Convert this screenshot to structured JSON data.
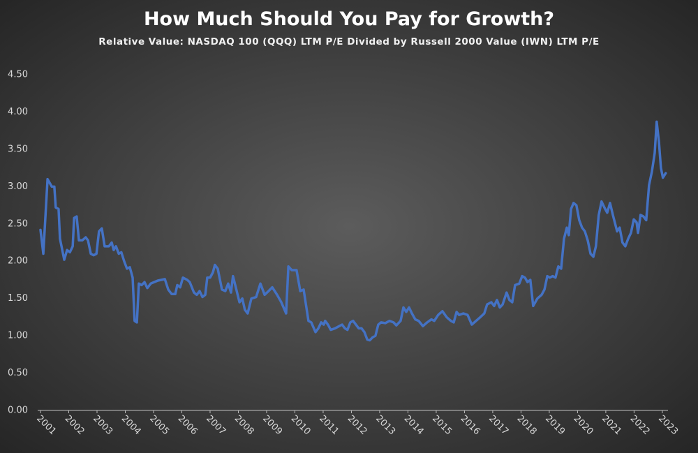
{
  "chart_data": {
    "type": "line",
    "title": "How Much Should You Pay for Growth?",
    "subtitle": "Relative Value: NASDAQ 100 (QQQ) LTM P/E Divided by Russell 2000 Value (IWN) LTM P/E",
    "color": "#4472c4",
    "xlim": [
      2001,
      2023.2
    ],
    "xticks": [
      2001,
      2002,
      2003,
      2004,
      2005,
      2006,
      2007,
      2008,
      2009,
      2010,
      2011,
      2012,
      2013,
      2014,
      2015,
      2016,
      2017,
      2018,
      2019,
      2020,
      2021,
      2022,
      2023
    ],
    "ylim": [
      0,
      4.5
    ],
    "yticks": [
      {
        "value": 0,
        "label": "0.00"
      },
      {
        "value": 0.5,
        "label": "0.50"
      },
      {
        "value": 1,
        "label": "1.00"
      },
      {
        "value": 1.5,
        "label": "1.50"
      },
      {
        "value": 2,
        "label": "2.00"
      },
      {
        "value": 2.5,
        "label": "2.50"
      },
      {
        "value": 3,
        "label": "3.00"
      },
      {
        "value": 3.5,
        "label": "3.50"
      },
      {
        "value": 4,
        "label": "4.00"
      },
      {
        "value": 4.5,
        "label": "4.50"
      }
    ],
    "x": [
      2001.0,
      2001.1,
      2001.25,
      2001.4,
      2001.49,
      2001.54,
      2001.64,
      2001.69,
      2001.84,
      2001.94,
      2002.04,
      2002.14,
      2002.19,
      2002.28,
      2002.36,
      2002.48,
      2002.6,
      2002.68,
      2002.78,
      2002.88,
      2002.98,
      2003.07,
      2003.17,
      2003.27,
      2003.42,
      2003.52,
      2003.59,
      2003.67,
      2003.77,
      2003.86,
      2003.96,
      2004.06,
      2004.16,
      2004.26,
      2004.33,
      2004.41,
      2004.48,
      2004.58,
      2004.68,
      2004.78,
      2004.9,
      2005.15,
      2005.4,
      2005.52,
      2005.64,
      2005.77,
      2005.84,
      2005.94,
      2006.04,
      2006.19,
      2006.28,
      2006.43,
      2006.53,
      2006.63,
      2006.73,
      2006.83,
      2006.9,
      2007.0,
      2007.1,
      2007.17,
      2007.27,
      2007.42,
      2007.54,
      2007.64,
      2007.74,
      2007.81,
      2007.91,
      2008.04,
      2008.14,
      2008.23,
      2008.33,
      2008.46,
      2008.63,
      2008.78,
      2008.93,
      2009.07,
      2009.2,
      2009.37,
      2009.52,
      2009.69,
      2009.77,
      2009.89,
      2010.06,
      2010.19,
      2010.31,
      2010.48,
      2010.58,
      2010.73,
      2010.83,
      2010.93,
      2011.02,
      2011.07,
      2011.17,
      2011.27,
      2011.42,
      2011.57,
      2011.67,
      2011.77,
      2011.86,
      2011.96,
      2012.06,
      2012.16,
      2012.26,
      2012.36,
      2012.46,
      2012.56,
      2012.65,
      2012.75,
      2012.85,
      2012.95,
      2013.05,
      2013.2,
      2013.35,
      2013.49,
      2013.59,
      2013.74,
      2013.84,
      2013.94,
      2014.04,
      2014.14,
      2014.26,
      2014.38,
      2014.53,
      2014.68,
      2014.83,
      2014.93,
      2015.07,
      2015.22,
      2015.37,
      2015.52,
      2015.62,
      2015.72,
      2015.81,
      2015.96,
      2016.11,
      2016.26,
      2016.41,
      2016.56,
      2016.7,
      2016.8,
      2016.95,
      2017.05,
      2017.15,
      2017.25,
      2017.35,
      2017.49,
      2017.59,
      2017.69,
      2017.79,
      2017.94,
      2018.04,
      2018.14,
      2018.23,
      2018.33,
      2018.43,
      2018.58,
      2018.73,
      2018.83,
      2018.93,
      2019.02,
      2019.12,
      2019.22,
      2019.32,
      2019.42,
      2019.52,
      2019.62,
      2019.69,
      2019.77,
      2019.86,
      2019.96,
      2020.06,
      2020.16,
      2020.26,
      2020.36,
      2020.46,
      2020.56,
      2020.65,
      2020.75,
      2020.85,
      2020.95,
      2021.05,
      2021.15,
      2021.25,
      2021.4,
      2021.49,
      2021.59,
      2021.69,
      2021.79,
      2021.89,
      2021.99,
      2022.09,
      2022.14,
      2022.23,
      2022.33,
      2022.43,
      2022.53,
      2022.63,
      2022.73,
      2022.8,
      2022.88,
      2022.95,
      2023.02,
      2023.12
    ],
    "values": [
      2.42,
      2.1,
      3.1,
      3.0,
      3.0,
      2.72,
      2.7,
      2.3,
      2.02,
      2.15,
      2.12,
      2.2,
      2.58,
      2.6,
      2.28,
      2.28,
      2.32,
      2.28,
      2.1,
      2.08,
      2.1,
      2.4,
      2.44,
      2.2,
      2.2,
      2.25,
      2.15,
      2.2,
      2.1,
      2.12,
      2.0,
      1.9,
      1.92,
      1.78,
      1.2,
      1.18,
      1.7,
      1.68,
      1.72,
      1.64,
      1.7,
      1.74,
      1.76,
      1.62,
      1.56,
      1.56,
      1.68,
      1.65,
      1.78,
      1.75,
      1.72,
      1.58,
      1.55,
      1.6,
      1.52,
      1.55,
      1.78,
      1.78,
      1.85,
      1.95,
      1.9,
      1.62,
      1.6,
      1.7,
      1.58,
      1.8,
      1.65,
      1.45,
      1.5,
      1.35,
      1.3,
      1.5,
      1.52,
      1.7,
      1.55,
      1.6,
      1.65,
      1.55,
      1.45,
      1.3,
      1.93,
      1.88,
      1.88,
      1.6,
      1.62,
      1.2,
      1.18,
      1.05,
      1.1,
      1.18,
      1.15,
      1.2,
      1.15,
      1.08,
      1.1,
      1.13,
      1.15,
      1.1,
      1.08,
      1.18,
      1.2,
      1.15,
      1.1,
      1.1,
      1.05,
      0.95,
      0.94,
      0.98,
      1.0,
      1.15,
      1.18,
      1.17,
      1.2,
      1.18,
      1.14,
      1.2,
      1.38,
      1.32,
      1.38,
      1.3,
      1.22,
      1.2,
      1.13,
      1.18,
      1.22,
      1.2,
      1.28,
      1.33,
      1.25,
      1.2,
      1.18,
      1.32,
      1.28,
      1.3,
      1.28,
      1.15,
      1.2,
      1.25,
      1.3,
      1.42,
      1.45,
      1.4,
      1.48,
      1.38,
      1.42,
      1.58,
      1.48,
      1.45,
      1.68,
      1.7,
      1.8,
      1.78,
      1.72,
      1.75,
      1.4,
      1.5,
      1.55,
      1.62,
      1.8,
      1.78,
      1.8,
      1.78,
      1.93,
      1.9,
      2.3,
      2.45,
      2.35,
      2.7,
      2.78,
      2.75,
      2.55,
      2.45,
      2.4,
      2.28,
      2.1,
      2.06,
      2.2,
      2.62,
      2.8,
      2.72,
      2.65,
      2.78,
      2.62,
      2.4,
      2.45,
      2.25,
      2.2,
      2.3,
      2.38,
      2.56,
      2.52,
      2.38,
      2.62,
      2.6,
      2.55,
      3.02,
      3.2,
      3.45,
      3.87,
      3.6,
      3.25,
      3.12,
      3.18
    ]
  }
}
